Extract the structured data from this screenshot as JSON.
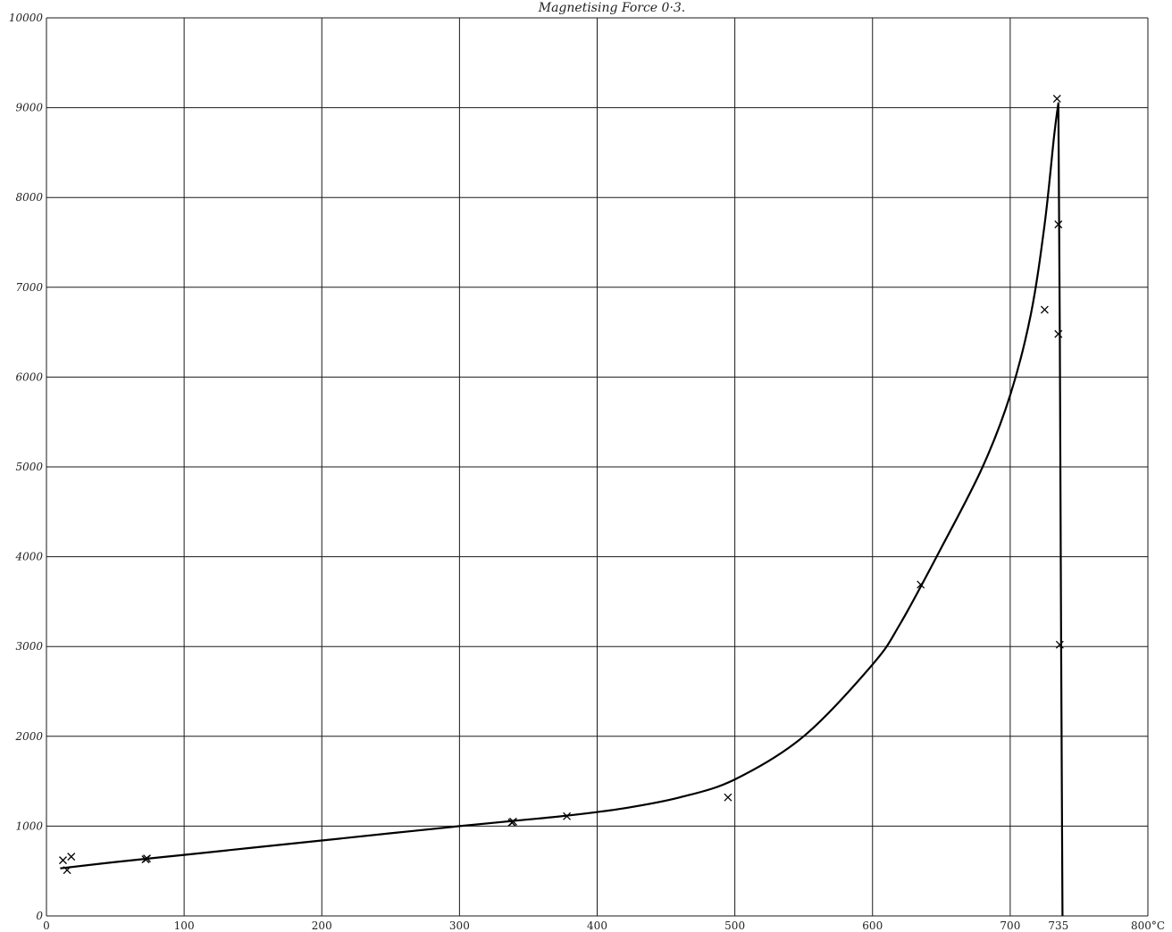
{
  "chart_data": {
    "type": "line",
    "title": "Magnetising Force 0·3.",
    "xlabel": "",
    "ylabel": "",
    "xlim": [
      0,
      800
    ],
    "ylim": [
      0,
      10000
    ],
    "grid": true,
    "x_ticks": [
      {
        "value": 0,
        "label": "0"
      },
      {
        "value": 100,
        "label": "100"
      },
      {
        "value": 200,
        "label": "200"
      },
      {
        "value": 300,
        "label": "300"
      },
      {
        "value": 400,
        "label": "400"
      },
      {
        "value": 500,
        "label": "500"
      },
      {
        "value": 600,
        "label": "600"
      },
      {
        "value": 700,
        "label": "700"
      },
      {
        "value": 735,
        "label": "735"
      },
      {
        "value": 800,
        "label": "800°C"
      }
    ],
    "y_ticks": [
      {
        "value": 0,
        "label": "0"
      },
      {
        "value": 1000,
        "label": "1000"
      },
      {
        "value": 2000,
        "label": "2000"
      },
      {
        "value": 3000,
        "label": "3000"
      },
      {
        "value": 4000,
        "label": "4000"
      },
      {
        "value": 5000,
        "label": "5000"
      },
      {
        "value": 6000,
        "label": "6000"
      },
      {
        "value": 7000,
        "label": "7000"
      },
      {
        "value": 8000,
        "label": "8000"
      },
      {
        "value": 9000,
        "label": "9000"
      },
      {
        "value": 10000,
        "label": "10000"
      }
    ],
    "curve": {
      "x": [
        10,
        50,
        100,
        150,
        200,
        250,
        300,
        340,
        380,
        420,
        460,
        500,
        550,
        600,
        620,
        650,
        680,
        700,
        715,
        725,
        732,
        735,
        736,
        737,
        738
      ],
      "y": [
        530,
        600,
        680,
        760,
        840,
        920,
        1000,
        1060,
        1120,
        1200,
        1320,
        1520,
        2000,
        2800,
        3250,
        4100,
        5000,
        5800,
        6700,
        7700,
        8700,
        9050,
        6500,
        3000,
        0
      ]
    },
    "observations": {
      "x": [
        12,
        15,
        18,
        72,
        73,
        338,
        339,
        378,
        495,
        635,
        725,
        734,
        735,
        735,
        736
      ],
      "y": [
        620,
        510,
        660,
        630,
        640,
        1040,
        1050,
        1110,
        1320,
        3690,
        6750,
        9100,
        7700,
        6480,
        3020
      ]
    }
  }
}
